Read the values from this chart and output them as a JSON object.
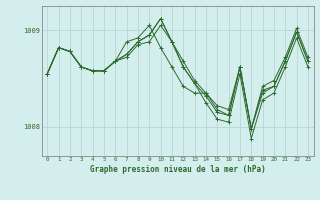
{
  "title": "Graphe pression niveau de la mer (hPa)",
  "background_color": "#d4eeee",
  "line_color": "#2d6a2d",
  "grid_color": "#b0d0d0",
  "hours": [
    0,
    1,
    2,
    3,
    4,
    5,
    6,
    7,
    8,
    9,
    10,
    11,
    12,
    13,
    14,
    15,
    16,
    17,
    18,
    19,
    20,
    21,
    22,
    23
  ],
  "series1": [
    1008.55,
    1008.82,
    1008.78,
    1008.62,
    1008.58,
    1008.58,
    1008.68,
    1008.88,
    1008.92,
    1009.05,
    1008.82,
    1008.62,
    1008.42,
    1008.35,
    1008.35,
    1008.22,
    1008.18,
    1008.62,
    1007.98,
    1008.42,
    1008.48,
    1008.72,
    1009.02,
    1008.72
  ],
  "series2": [
    1008.55,
    1008.82,
    1008.78,
    1008.62,
    1008.58,
    1008.58,
    1008.68,
    1008.72,
    1008.85,
    1008.88,
    1009.05,
    1008.88,
    1008.68,
    1008.48,
    1008.35,
    1008.18,
    1008.12,
    1008.62,
    1007.98,
    1008.38,
    1008.42,
    1008.68,
    1008.98,
    1008.68
  ],
  "series3": [
    1008.55,
    1008.82,
    1008.78,
    1008.62,
    1008.58,
    1008.58,
    1008.68,
    1008.75,
    1008.88,
    1008.95,
    1009.12,
    1008.88,
    1008.62,
    1008.45,
    1008.32,
    1008.15,
    1008.12,
    1008.62,
    1007.98,
    1008.35,
    1008.42,
    1008.68,
    1008.98,
    1008.68
  ],
  "series4": [
    1008.55,
    1008.82,
    1008.78,
    1008.62,
    1008.58,
    1008.58,
    1008.68,
    1008.75,
    1008.88,
    1008.95,
    1009.12,
    1008.88,
    1008.62,
    1008.45,
    1008.25,
    1008.08,
    1008.05,
    1008.55,
    1007.88,
    1008.28,
    1008.35,
    1008.62,
    1008.92,
    1008.62
  ],
  "ylim": [
    1007.7,
    1009.25
  ],
  "yticks": [
    1008.0,
    1009.0
  ],
  "xlim": [
    -0.5,
    23.5
  ]
}
